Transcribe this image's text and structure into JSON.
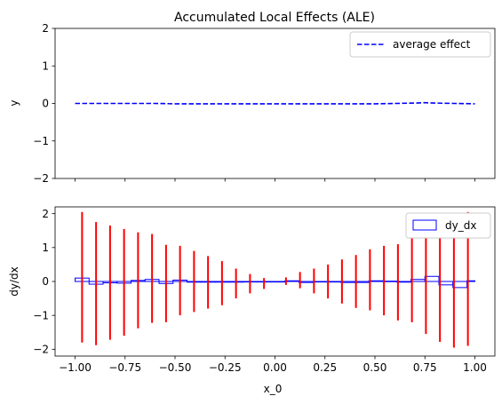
{
  "chart_data": [
    {
      "type": "line",
      "title": "Accumulated Local Effects (ALE)",
      "xlabel": "",
      "ylabel": "y",
      "xlim": [
        -1.1,
        1.1
      ],
      "ylim": [
        -2,
        2
      ],
      "xticks": [
        -1.0,
        -0.75,
        -0.5,
        -0.25,
        0.0,
        0.25,
        0.5,
        0.75,
        1.0
      ],
      "xtick_labels_visible": false,
      "yticks": [
        -2,
        -1,
        0,
        1,
        2
      ],
      "ytick_labels": [
        "−2",
        "−1",
        "0",
        "1",
        "2"
      ],
      "legend_position": "upper right",
      "series": [
        {
          "name": "average effect",
          "color": "#0000ff",
          "style": "dashed",
          "x": [
            -1.0,
            -0.9,
            -0.8,
            -0.7,
            -0.6,
            -0.5,
            -0.4,
            -0.3,
            -0.2,
            -0.1,
            0.0,
            0.1,
            0.2,
            0.3,
            0.4,
            0.5,
            0.6,
            0.7,
            0.75,
            0.8,
            0.9,
            1.0
          ],
          "y": [
            0.0,
            0.0,
            0.0,
            0.0,
            0.0,
            -0.01,
            -0.01,
            -0.01,
            -0.01,
            -0.01,
            -0.01,
            -0.01,
            -0.01,
            -0.01,
            -0.01,
            -0.01,
            0.0,
            0.01,
            0.02,
            0.01,
            0.0,
            -0.01
          ]
        }
      ]
    },
    {
      "type": "bar",
      "title": "",
      "xlabel": "x_0",
      "ylabel": "dy/dx",
      "xlim": [
        -1.1,
        1.1
      ],
      "ylim": [
        -2.2,
        2.2
      ],
      "xticks": [
        -1.0,
        -0.75,
        -0.5,
        -0.25,
        0.0,
        0.25,
        0.5,
        0.75,
        1.0
      ],
      "xtick_labels": [
        "−1.00",
        "−0.75",
        "−0.50",
        "−0.25",
        "0.00",
        "0.25",
        "0.50",
        "0.75",
        "1.00"
      ],
      "yticks": [
        -2,
        -1,
        0,
        1,
        2
      ],
      "ytick_labels": [
        "−2",
        "−1",
        "0",
        "1",
        "2"
      ],
      "legend_position": "upper right",
      "series": [
        {
          "name": "dy_dx",
          "color": "#0000ff",
          "style": "step-bars",
          "edges": [
            -1.0,
            -0.93,
            -0.86,
            -0.79,
            -0.72,
            -0.65,
            -0.58,
            -0.51,
            -0.44,
            -0.37,
            -0.3,
            -0.23,
            -0.16,
            -0.09,
            -0.02,
            0.05,
            0.12,
            0.19,
            0.26,
            0.33,
            0.4,
            0.47,
            0.54,
            0.61,
            0.68,
            0.75,
            0.82,
            0.89,
            0.96,
            1.0
          ],
          "values": [
            0.1,
            -0.08,
            -0.04,
            -0.05,
            0.03,
            0.06,
            -0.06,
            0.04,
            -0.02,
            -0.02,
            -0.02,
            -0.02,
            0.0,
            0.0,
            0.0,
            0.02,
            -0.03,
            0.0,
            0.0,
            -0.03,
            -0.03,
            0.02,
            0.01,
            -0.02,
            0.06,
            0.15,
            -0.1,
            -0.18,
            0.02
          ]
        },
        {
          "name": "",
          "color": "#ff0000",
          "style": "errorbars",
          "x": [
            -0.965,
            -0.895,
            -0.825,
            -0.755,
            -0.685,
            -0.615,
            -0.545,
            -0.475,
            -0.405,
            -0.335,
            -0.265,
            -0.195,
            -0.125,
            -0.055,
            0.055,
            0.125,
            0.195,
            0.265,
            0.335,
            0.405,
            0.475,
            0.545,
            0.615,
            0.685,
            0.755,
            0.825,
            0.895,
            0.965
          ],
          "lower": [
            -1.8,
            -1.88,
            -1.72,
            -1.6,
            -1.38,
            -1.22,
            -1.2,
            -1.0,
            -0.9,
            -0.8,
            -0.7,
            -0.5,
            -0.35,
            -0.22,
            -0.1,
            -0.2,
            -0.35,
            -0.5,
            -0.65,
            -0.78,
            -0.85,
            -1.0,
            -1.15,
            -1.2,
            -1.55,
            -1.78,
            -1.95,
            -1.9
          ],
          "upper": [
            2.05,
            1.75,
            1.65,
            1.55,
            1.45,
            1.4,
            1.08,
            1.05,
            0.9,
            0.75,
            0.6,
            0.38,
            0.22,
            0.1,
            0.12,
            0.28,
            0.38,
            0.5,
            0.65,
            0.78,
            0.95,
            1.05,
            1.1,
            1.35,
            1.42,
            1.58,
            1.85,
            2.05
          ]
        }
      ]
    }
  ]
}
